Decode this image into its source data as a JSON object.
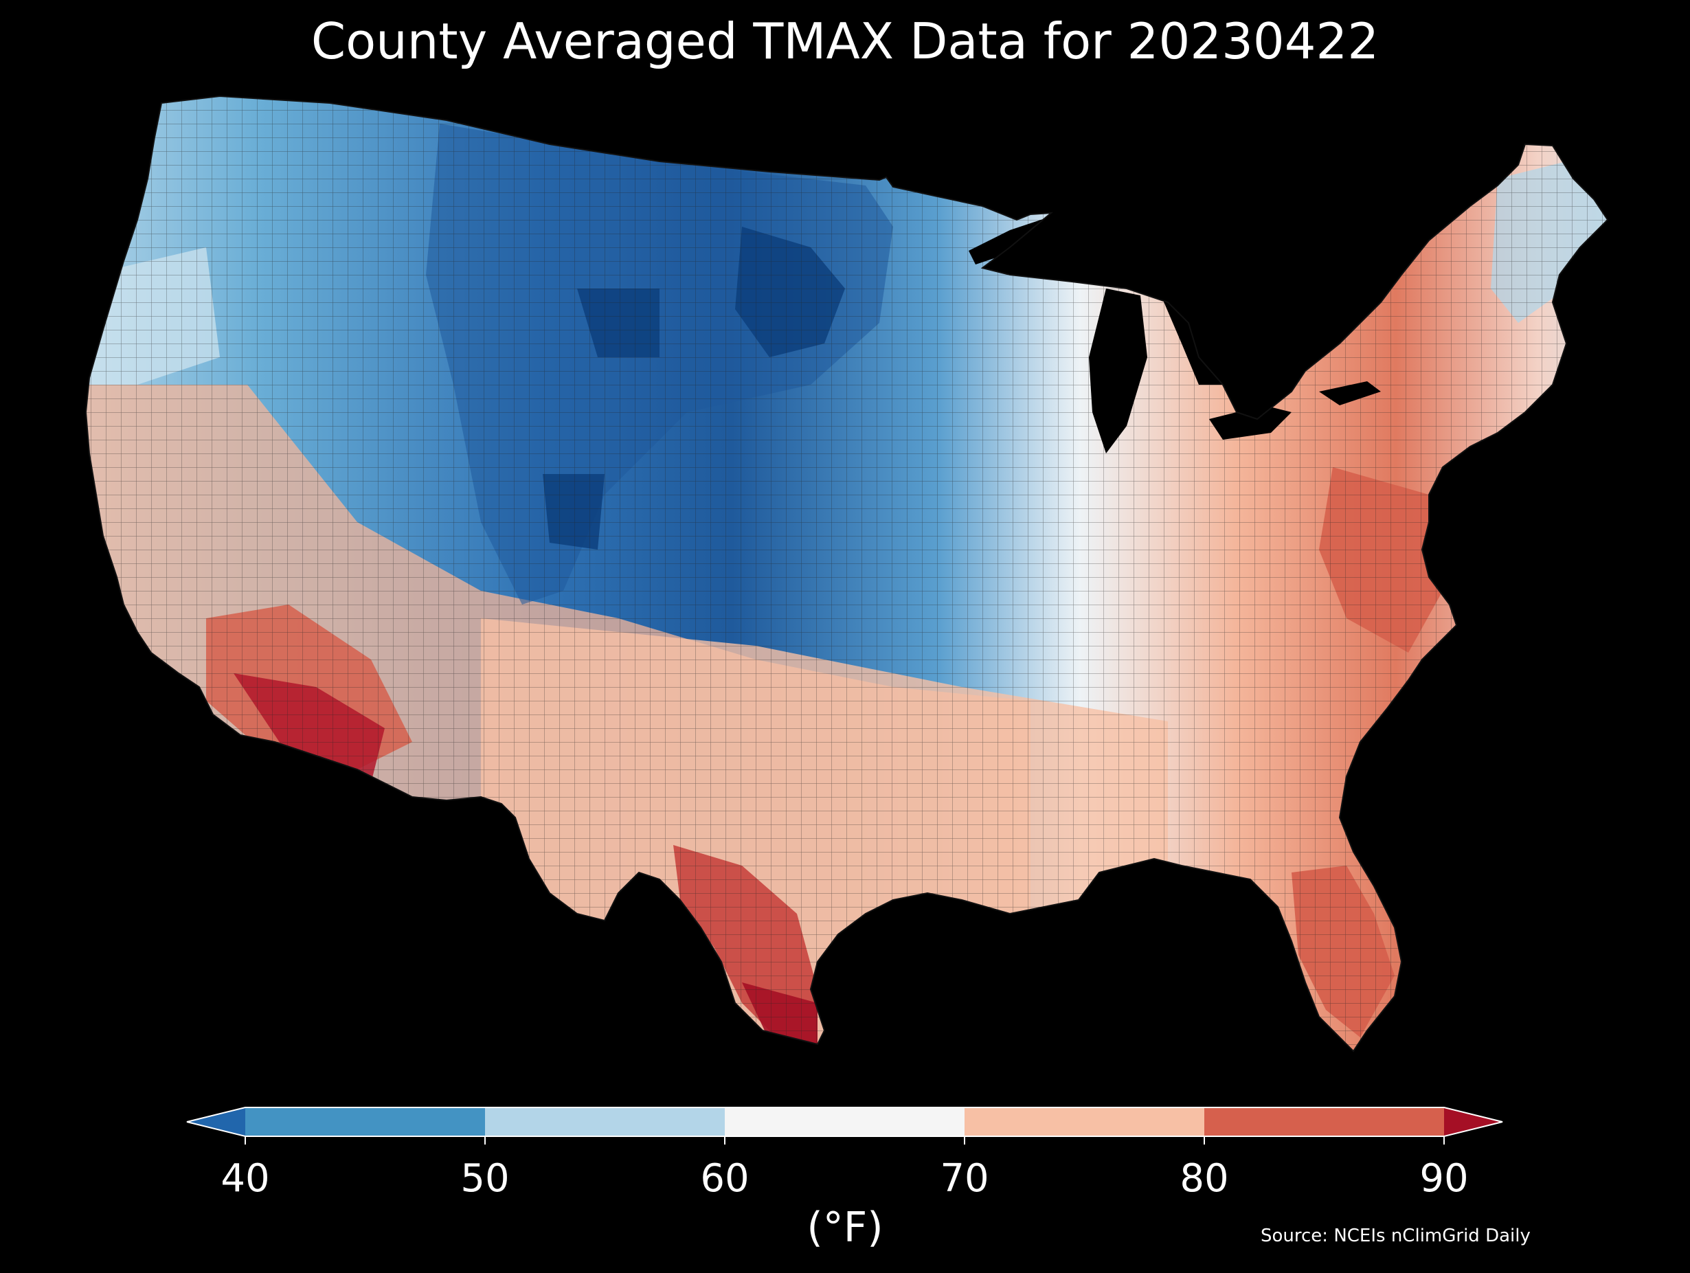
{
  "title": "County Averaged TMAX Data for 20230422",
  "colorbar": {
    "label": "(°F)",
    "ticks": [
      "40",
      "50",
      "60",
      "70",
      "80",
      "90"
    ],
    "bins": [
      {
        "from": null,
        "to": 40,
        "color": "#2166ac"
      },
      {
        "from": 40,
        "to": 50,
        "color": "#4393c3"
      },
      {
        "from": 50,
        "to": 60,
        "color": "#b3d5e8"
      },
      {
        "from": 60,
        "to": 70,
        "color": "#f5f5f5"
      },
      {
        "from": 70,
        "to": 80,
        "color": "#f7c0a5"
      },
      {
        "from": 80,
        "to": 90,
        "color": "#d6604d"
      },
      {
        "from": 90,
        "to": null,
        "color": "#a50f25"
      }
    ]
  },
  "source": "Source: NCEIs nClimGrid Daily",
  "colors": {
    "background": "#000000",
    "text": "#ffffff",
    "county_border": "#333333"
  }
}
